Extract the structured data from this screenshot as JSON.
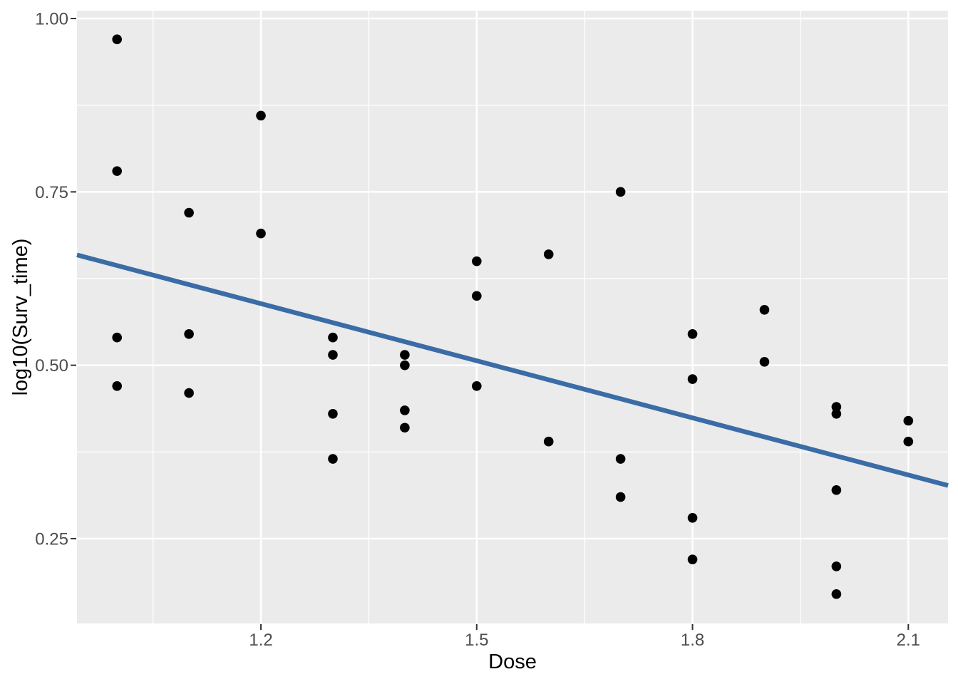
{
  "figure": {
    "background": "#FFFFFF"
  },
  "chart_data": {
    "type": "scatter",
    "title": "",
    "xlabel": "Dose",
    "ylabel": "log10(Surv_time)",
    "legend": "none",
    "grid": true,
    "xlim": [
      0.9443,
      2.1552
    ],
    "ylim": [
      0.1277,
      1.0113
    ],
    "x_ticks": [
      1.2,
      1.5,
      1.8,
      2.1
    ],
    "x_tick_labels": [
      "1.2",
      "1.5",
      "1.8",
      "2.1"
    ],
    "x_minor_ticks": [
      1.05,
      1.35,
      1.65,
      1.95
    ],
    "y_ticks": [
      0.25,
      0.5,
      0.75,
      1.0
    ],
    "y_tick_labels": [
      "0.25",
      "0.50",
      "0.75",
      "1.00"
    ],
    "y_minor_ticks": [
      0.375,
      0.625,
      0.875
    ],
    "points": [
      [
        1.0,
        0.97
      ],
      [
        1.0,
        0.78
      ],
      [
        1.0,
        0.54
      ],
      [
        1.0,
        0.47
      ],
      [
        1.1,
        0.72
      ],
      [
        1.1,
        0.545
      ],
      [
        1.1,
        0.46
      ],
      [
        1.2,
        0.86
      ],
      [
        1.2,
        0.69
      ],
      [
        1.3,
        0.54
      ],
      [
        1.3,
        0.515
      ],
      [
        1.3,
        0.43
      ],
      [
        1.3,
        0.365
      ],
      [
        1.4,
        0.515
      ],
      [
        1.4,
        0.5
      ],
      [
        1.4,
        0.435
      ],
      [
        1.4,
        0.41
      ],
      [
        1.5,
        0.65
      ],
      [
        1.5,
        0.6
      ],
      [
        1.5,
        0.47
      ],
      [
        1.6,
        0.66
      ],
      [
        1.6,
        0.39
      ],
      [
        1.7,
        0.75
      ],
      [
        1.7,
        0.365
      ],
      [
        1.7,
        0.31
      ],
      [
        1.8,
        0.545
      ],
      [
        1.8,
        0.48
      ],
      [
        1.8,
        0.28
      ],
      [
        1.8,
        0.22
      ],
      [
        1.9,
        0.58
      ],
      [
        1.9,
        0.505
      ],
      [
        2.0,
        0.44
      ],
      [
        2.0,
        0.43
      ],
      [
        2.0,
        0.32
      ],
      [
        2.0,
        0.21
      ],
      [
        2.0,
        0.17
      ],
      [
        2.1,
        0.42
      ],
      [
        2.1,
        0.39
      ]
    ],
    "smooth_line": {
      "type": "linear",
      "x": [
        0.9443,
        2.1552
      ],
      "y": [
        0.6591,
        0.3266
      ]
    },
    "colors": {
      "panel_background": "#EBEBEB",
      "grid_major": "#FFFFFF",
      "grid_minor": "#FFFFFF",
      "point": "#000000",
      "smooth_line": "#3A6CA6",
      "tick_mark": "#333333",
      "tick_label": "#4D4D4D",
      "axis_title": "#000000"
    }
  }
}
